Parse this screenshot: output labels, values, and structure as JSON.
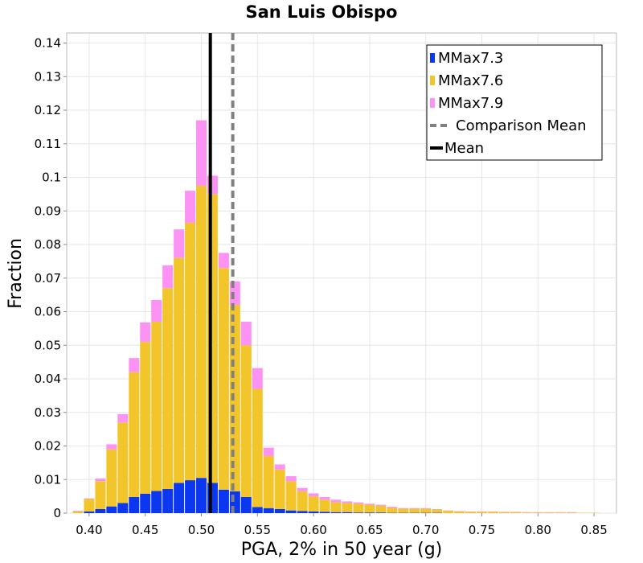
{
  "chart_data": {
    "type": "bar",
    "stacked": true,
    "title": "San Luis Obispo",
    "xlabel": "PGA, 2% in 50 year (g)",
    "ylabel": "Fraction",
    "xlim": [
      0.38,
      0.87
    ],
    "ylim": [
      0,
      0.143
    ],
    "grid": true,
    "legend_position": "top-right",
    "x_ticks": [
      0.4,
      0.45,
      0.5,
      0.55,
      0.6,
      0.65,
      0.7,
      0.75,
      0.8,
      0.85
    ],
    "x_tick_labels": [
      "0.40",
      "0.45",
      "0.50",
      "0.55",
      "0.60",
      "0.65",
      "0.70",
      "0.75",
      "0.80",
      "0.85"
    ],
    "y_ticks": [
      0,
      0.01,
      0.02,
      0.03,
      0.04,
      0.05,
      0.06,
      0.07,
      0.08,
      0.09,
      0.1,
      0.11,
      0.12,
      0.13,
      0.14
    ],
    "y_tick_labels": [
      "0",
      "0.01",
      "0.02",
      "0.03",
      "0.04",
      "0.05",
      "0.06",
      "0.07",
      "0.08",
      "0.09",
      "0.1",
      "0.11",
      "0.12",
      "0.13",
      "0.14"
    ],
    "bin_width": 0.01,
    "x": [
      0.39,
      0.4,
      0.41,
      0.42,
      0.43,
      0.44,
      0.45,
      0.46,
      0.47,
      0.48,
      0.49,
      0.5,
      0.51,
      0.52,
      0.53,
      0.54,
      0.55,
      0.56,
      0.57,
      0.58,
      0.59,
      0.6,
      0.61,
      0.62,
      0.63,
      0.64,
      0.65,
      0.66,
      0.67,
      0.68,
      0.69,
      0.7,
      0.71,
      0.72,
      0.73,
      0.74,
      0.75,
      0.76,
      0.77,
      0.78,
      0.79,
      0.8,
      0.81,
      0.82,
      0.83,
      0.84,
      0.85
    ],
    "series": [
      {
        "name": "MMax7.3",
        "color": "#0a37ef",
        "values": [
          0.0,
          0.0005,
          0.0012,
          0.002,
          0.003,
          0.0048,
          0.0058,
          0.0066,
          0.0072,
          0.009,
          0.0098,
          0.0105,
          0.009,
          0.007,
          0.0065,
          0.0048,
          0.0018,
          0.0015,
          0.0012,
          0.0008,
          0.0006,
          0.0005,
          0.0004,
          0.0003,
          0.0003,
          0.0002,
          0.0002,
          0.0002,
          0.0001,
          0.0001,
          0.0001,
          0.0001,
          0.0001,
          0.0,
          0.0,
          0.0,
          0.0,
          0.0,
          0.0,
          0.0,
          0.0,
          0.0,
          0.0,
          0.0,
          0.0,
          0.0,
          0.0
        ]
      },
      {
        "name": "MMax7.6",
        "color": "#f2c62a",
        "values": [
          0.0005,
          0.0037,
          0.0083,
          0.017,
          0.024,
          0.0372,
          0.0452,
          0.0504,
          0.0598,
          0.067,
          0.0767,
          0.087,
          0.086,
          0.066,
          0.0555,
          0.0452,
          0.0352,
          0.0155,
          0.0118,
          0.0087,
          0.0059,
          0.0045,
          0.0036,
          0.0029,
          0.0027,
          0.0026,
          0.0023,
          0.002,
          0.0015,
          0.0012,
          0.0012,
          0.0012,
          0.001,
          0.0007,
          0.0005,
          0.0004,
          0.0004,
          0.0004,
          0.0003,
          0.0003,
          0.0002,
          0.0002,
          0.0002,
          0.0002,
          0.0002,
          0.0001,
          0.0001
        ]
      },
      {
        "name": "MMax7.9",
        "color": "#fb92f4",
        "values": [
          0.0002,
          0.0002,
          0.0008,
          0.0015,
          0.0025,
          0.0042,
          0.0058,
          0.0065,
          0.0068,
          0.0085,
          0.0095,
          0.0195,
          0.0055,
          0.0045,
          0.007,
          0.007,
          0.0062,
          0.0025,
          0.0015,
          0.0015,
          0.001,
          0.0009,
          0.0008,
          0.0008,
          0.0005,
          0.0004,
          0.0003,
          0.0003,
          0.0003,
          0.0002,
          0.0002,
          0.0002,
          0.0001,
          0.0001,
          0.0001,
          0.0001,
          0.0001,
          0.0001,
          0.0001,
          0.0001,
          0.0001,
          0.0001,
          0.0001,
          0.0001,
          0.0001,
          0.0,
          0.0
        ]
      }
    ],
    "reference_lines": [
      {
        "name": "Comparison Mean",
        "x": 0.528,
        "style": "dashed",
        "color": "#808080"
      },
      {
        "name": "Mean",
        "x": 0.508,
        "style": "solid",
        "color": "#000000"
      }
    ],
    "legend": [
      {
        "label": "MMax7.3",
        "kind": "box",
        "color": "#0a37ef"
      },
      {
        "label": "MMax7.6",
        "kind": "box",
        "color": "#f2c62a"
      },
      {
        "label": "MMax7.9",
        "kind": "box",
        "color": "#fb92f4"
      },
      {
        "label": "Comparison Mean",
        "kind": "dashed-line",
        "color": "#808080"
      },
      {
        "label": "Mean",
        "kind": "solid-line",
        "color": "#000000"
      }
    ]
  }
}
